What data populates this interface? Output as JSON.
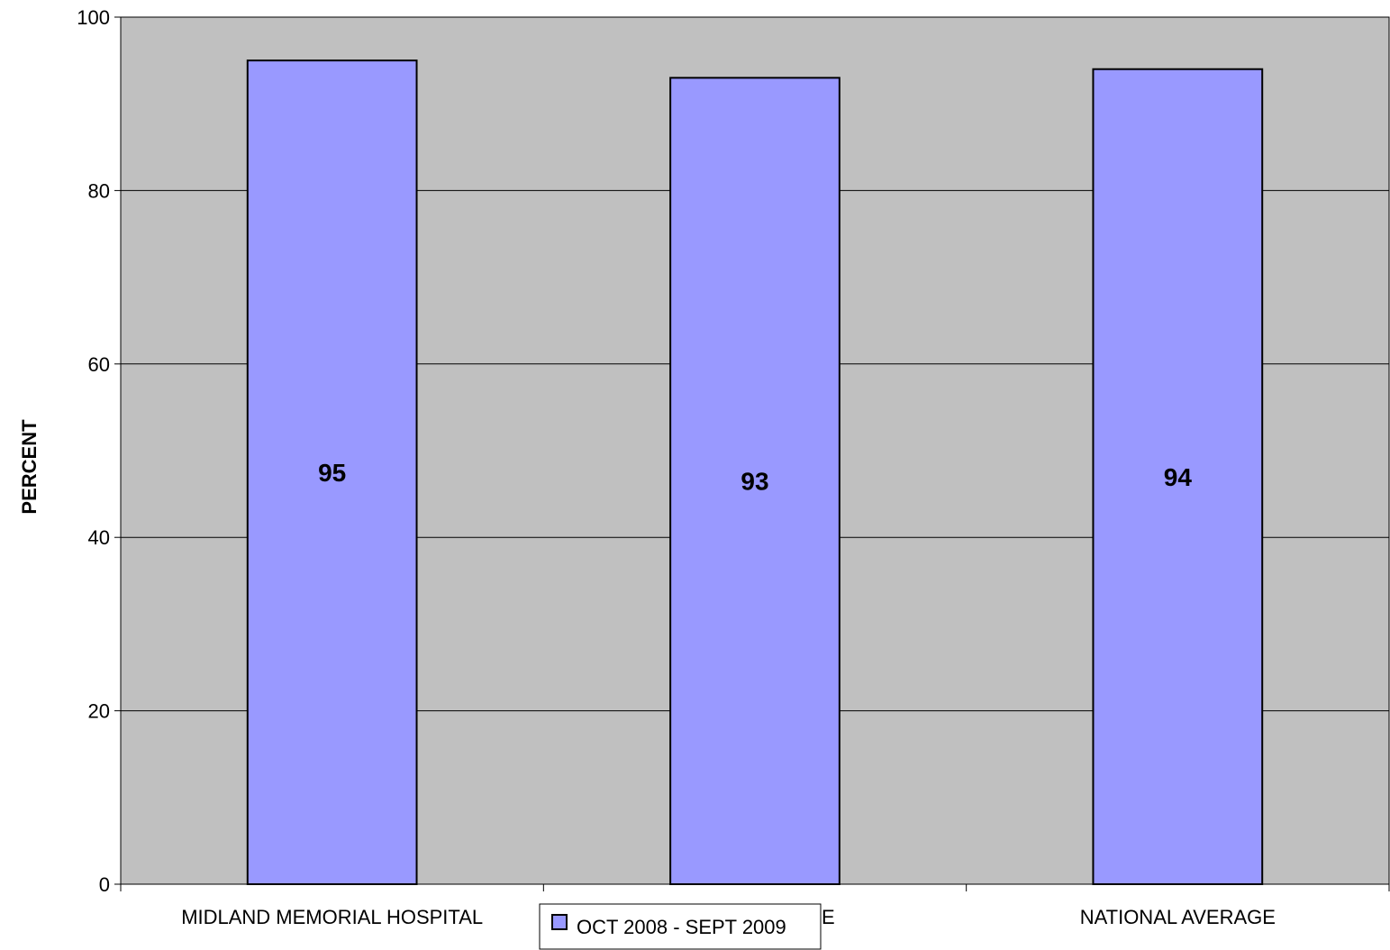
{
  "chart_data": {
    "type": "bar",
    "title": "",
    "xlabel": "",
    "ylabel": "PERCENT",
    "ylim": [
      0,
      100
    ],
    "yticks": [
      0,
      20,
      40,
      60,
      80,
      100
    ],
    "categories": [
      "MIDLAND MEMORIAL HOSPITAL",
      "STATE AVERAGE",
      "NATIONAL AVERAGE"
    ],
    "series": [
      {
        "name": "OCT 2008 - SEPT 2009",
        "values": [
          95,
          93,
          94
        ]
      }
    ],
    "data_labels": [
      "95",
      "93",
      "94"
    ],
    "grid": true,
    "legend_position": "bottom-center",
    "colors": {
      "plot_bg": "#c0c0c0",
      "bar": "#9999ff",
      "bar_stroke": "#000000",
      "grid": "#000000"
    }
  }
}
